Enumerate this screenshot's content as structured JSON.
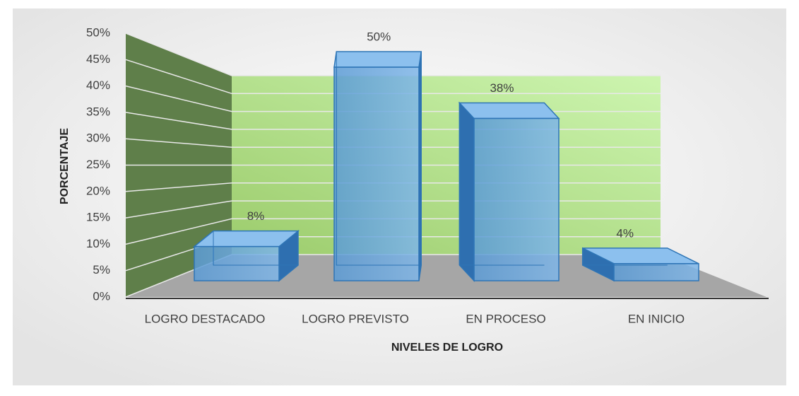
{
  "chart_data": {
    "type": "bar3d",
    "categories": [
      "LOGRO DESTACADO",
      "LOGRO PREVISTO",
      "EN PROCESO",
      "EN INICIO"
    ],
    "values": [
      8,
      50,
      38,
      4
    ],
    "value_labels": [
      "8%",
      "50%",
      "38%",
      "4%"
    ],
    "color": "#5b9bd5",
    "x_label": "NIVELES DE LOGRO",
    "y_label": "PORCENTAJE",
    "ylim": [
      0,
      50
    ],
    "yticks": [
      {
        "value": 0,
        "label": "0%"
      },
      {
        "value": 5,
        "label": "5%"
      },
      {
        "value": 10,
        "label": "10%"
      },
      {
        "value": 15,
        "label": "15%"
      },
      {
        "value": 20,
        "label": "20%"
      },
      {
        "value": 25,
        "label": "25%"
      },
      {
        "value": 30,
        "label": "30%"
      },
      {
        "value": 35,
        "label": "35%"
      },
      {
        "value": 40,
        "label": "40%"
      },
      {
        "value": 45,
        "label": "45%"
      },
      {
        "value": 50,
        "label": "50%"
      }
    ],
    "grid": true
  }
}
